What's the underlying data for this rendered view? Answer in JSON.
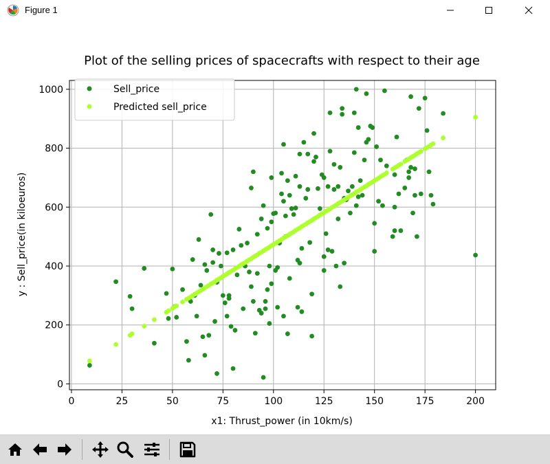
{
  "window": {
    "title": "Figure 1",
    "app_icon": "matplotlib-icon",
    "controls": [
      "minimize-icon",
      "maximize-icon",
      "close-icon"
    ]
  },
  "toolbar": {
    "buttons": [
      "home-icon",
      "back-icon",
      "forward-icon",
      "pan-icon",
      "zoom-icon",
      "configure-subplots-icon",
      "save-icon"
    ]
  },
  "chart_data": {
    "type": "scatter",
    "title": "Plot of the selling prices of spacecrafts with respect to their age",
    "xlabel": "x1: Thrust_power (in 10km/s)",
    "ylabel": "y : Sell_price(in kiloeuros)",
    "xlim": [
      -1,
      210
    ],
    "ylim": [
      -20,
      1030
    ],
    "xticks": [
      0,
      25,
      50,
      75,
      100,
      125,
      150,
      175,
      200
    ],
    "yticks": [
      0,
      200,
      400,
      600,
      800,
      1000
    ],
    "grid": true,
    "legend_position": "upper-left",
    "series": [
      {
        "name": "Sell_price",
        "color": "#228b22",
        "points": [
          [
            9,
            63
          ],
          [
            22,
            347
          ],
          [
            29,
            297
          ],
          [
            30,
            255
          ],
          [
            36,
            392
          ],
          [
            41,
            138
          ],
          [
            47,
            307
          ],
          [
            48,
            222
          ],
          [
            50,
            390
          ],
          [
            51,
            262
          ],
          [
            52,
            226
          ],
          [
            55,
            320
          ],
          [
            57,
            144
          ],
          [
            58,
            80
          ],
          [
            59,
            280
          ],
          [
            60,
            422
          ],
          [
            61,
            300
          ],
          [
            62,
            230
          ],
          [
            63,
            490
          ],
          [
            64,
            335
          ],
          [
            65,
            160
          ],
          [
            66,
            405
          ],
          [
            66,
            97
          ],
          [
            67,
            385
          ],
          [
            68,
            165
          ],
          [
            69,
            575
          ],
          [
            70,
            412
          ],
          [
            70,
            455
          ],
          [
            71,
            212
          ],
          [
            72,
            35
          ],
          [
            72,
            345
          ],
          [
            73,
            443
          ],
          [
            74,
            400
          ],
          [
            75,
            300
          ],
          [
            76,
            275
          ],
          [
            77,
            445
          ],
          [
            77,
            230
          ],
          [
            78,
            300
          ],
          [
            78,
            290
          ],
          [
            79,
            195
          ],
          [
            80,
            455
          ],
          [
            80,
            52
          ],
          [
            81,
            182
          ],
          [
            82,
            370
          ],
          [
            83,
            525
          ],
          [
            84,
            470
          ],
          [
            85,
            255
          ],
          [
            86,
            400
          ],
          [
            87,
            478
          ],
          [
            88,
            380
          ],
          [
            89,
            330
          ],
          [
            89,
            665
          ],
          [
            90,
            720
          ],
          [
            90,
            280
          ],
          [
            91,
            172
          ],
          [
            92,
            508
          ],
          [
            92,
            375
          ],
          [
            93,
            250
          ],
          [
            94,
            560
          ],
          [
            94,
            240
          ],
          [
            95,
            605
          ],
          [
            95,
            22
          ],
          [
            96,
            280
          ],
          [
            96,
            255
          ],
          [
            97,
            528
          ],
          [
            97,
            320
          ],
          [
            98,
            400
          ],
          [
            98,
            205
          ],
          [
            99,
            550
          ],
          [
            99,
            700
          ],
          [
            99,
            340
          ],
          [
            100,
            578
          ],
          [
            101,
            580
          ],
          [
            101,
            385
          ],
          [
            102,
            260
          ],
          [
            102,
            395
          ],
          [
            103,
            478
          ],
          [
            104,
            715
          ],
          [
            104,
            645
          ],
          [
            105,
            813
          ],
          [
            105,
            620
          ],
          [
            105,
            230
          ],
          [
            106,
            570
          ],
          [
            106,
            500
          ],
          [
            107,
            690
          ],
          [
            107,
            170
          ],
          [
            108,
            640
          ],
          [
            108,
            358
          ],
          [
            109,
            595
          ],
          [
            110,
            575
          ],
          [
            111,
            597
          ],
          [
            111,
            705
          ],
          [
            112,
            420
          ],
          [
            112,
            260
          ],
          [
            113,
            780
          ],
          [
            113,
            410
          ],
          [
            113,
            670
          ],
          [
            114,
            460
          ],
          [
            114,
            245
          ],
          [
            115,
            820
          ],
          [
            116,
            630
          ],
          [
            117,
            780
          ],
          [
            117,
            660
          ],
          [
            118,
            480
          ],
          [
            119,
            305
          ],
          [
            119,
            162
          ],
          [
            120,
            755
          ],
          [
            120,
            850
          ],
          [
            121,
            770
          ],
          [
            122,
            663
          ],
          [
            123,
            595
          ],
          [
            124,
            710
          ],
          [
            125,
            432
          ],
          [
            125,
            700
          ],
          [
            125,
            385
          ],
          [
            126,
            510
          ],
          [
            127,
            455
          ],
          [
            127,
            670
          ],
          [
            128,
            790
          ],
          [
            128,
            920
          ],
          [
            129,
            450
          ],
          [
            130,
            660
          ],
          [
            130,
            745
          ],
          [
            131,
            400
          ],
          [
            132,
            670
          ],
          [
            132,
            560
          ],
          [
            133,
            330
          ],
          [
            133,
            735
          ],
          [
            134,
            935
          ],
          [
            134,
            915
          ],
          [
            135,
            630
          ],
          [
            135,
            410
          ],
          [
            136,
            625
          ],
          [
            137,
            655
          ],
          [
            138,
            580
          ],
          [
            139,
            670
          ],
          [
            140,
            920
          ],
          [
            140,
            785
          ],
          [
            141,
            1000
          ],
          [
            141,
            605
          ],
          [
            142,
            635
          ],
          [
            142,
            870
          ],
          [
            143,
            690
          ],
          [
            144,
            640
          ],
          [
            145,
            760
          ],
          [
            146,
            985
          ],
          [
            146,
            820
          ],
          [
            147,
            830
          ],
          [
            148,
            875
          ],
          [
            149,
            870
          ],
          [
            150,
            545
          ],
          [
            150,
            450
          ],
          [
            151,
            805
          ],
          [
            152,
            620
          ],
          [
            153,
            760
          ],
          [
            154,
            605
          ],
          [
            155,
            995
          ],
          [
            156,
            740
          ],
          [
            159,
            500
          ],
          [
            160,
            710
          ],
          [
            160,
            520
          ],
          [
            160,
            600
          ],
          [
            161,
            838
          ],
          [
            162,
            645
          ],
          [
            163,
            520
          ],
          [
            165,
            665
          ],
          [
            166,
            760
          ],
          [
            167,
            700
          ],
          [
            167,
            720
          ],
          [
            168,
            735
          ],
          [
            168,
            975
          ],
          [
            169,
            580
          ],
          [
            170,
            730
          ],
          [
            170,
            640
          ],
          [
            171,
            500
          ],
          [
            172,
            935
          ],
          [
            173,
            645
          ],
          [
            175,
            970
          ],
          [
            176,
            860
          ],
          [
            177,
            720
          ],
          [
            178,
            640
          ],
          [
            179,
            610
          ],
          [
            184,
            918
          ],
          [
            200,
            437
          ]
        ]
      },
      {
        "name": "Predicted sell_price",
        "color": "#adff2f",
        "points": [
          [
            9,
            78
          ],
          [
            22,
            134
          ],
          [
            29,
            165
          ],
          [
            30,
            170
          ],
          [
            36,
            196
          ],
          [
            41,
            218
          ],
          [
            47,
            243
          ],
          [
            48,
            248
          ],
          [
            50,
            256
          ],
          [
            51,
            261
          ],
          [
            52,
            265
          ],
          [
            55,
            278
          ],
          [
            57,
            287
          ],
          [
            58,
            291
          ],
          [
            59,
            295
          ],
          [
            60,
            300
          ],
          [
            61,
            304
          ],
          [
            62,
            308
          ],
          [
            63,
            313
          ],
          [
            64,
            317
          ],
          [
            65,
            321
          ],
          [
            66,
            326
          ],
          [
            67,
            330
          ],
          [
            68,
            334
          ],
          [
            69,
            339
          ],
          [
            70,
            343
          ],
          [
            71,
            347
          ],
          [
            72,
            352
          ],
          [
            73,
            356
          ],
          [
            74,
            360
          ],
          [
            75,
            365
          ],
          [
            76,
            369
          ],
          [
            77,
            373
          ],
          [
            78,
            378
          ],
          [
            79,
            382
          ],
          [
            80,
            386
          ],
          [
            81,
            391
          ],
          [
            82,
            395
          ],
          [
            83,
            399
          ],
          [
            84,
            404
          ],
          [
            85,
            408
          ],
          [
            86,
            412
          ],
          [
            87,
            417
          ],
          [
            88,
            421
          ],
          [
            89,
            425
          ],
          [
            90,
            430
          ],
          [
            91,
            434
          ],
          [
            92,
            438
          ],
          [
            93,
            443
          ],
          [
            94,
            447
          ],
          [
            95,
            451
          ],
          [
            96,
            456
          ],
          [
            97,
            460
          ],
          [
            98,
            464
          ],
          [
            99,
            469
          ],
          [
            100,
            473
          ],
          [
            101,
            477
          ],
          [
            102,
            482
          ],
          [
            103,
            486
          ],
          [
            104,
            490
          ],
          [
            105,
            495
          ],
          [
            106,
            499
          ],
          [
            107,
            503
          ],
          [
            108,
            508
          ],
          [
            109,
            512
          ],
          [
            110,
            516
          ],
          [
            111,
            521
          ],
          [
            112,
            525
          ],
          [
            113,
            529
          ],
          [
            114,
            534
          ],
          [
            115,
            538
          ],
          [
            116,
            542
          ],
          [
            117,
            547
          ],
          [
            118,
            551
          ],
          [
            119,
            555
          ],
          [
            120,
            560
          ],
          [
            121,
            564
          ],
          [
            122,
            568
          ],
          [
            123,
            573
          ],
          [
            124,
            577
          ],
          [
            125,
            581
          ],
          [
            126,
            586
          ],
          [
            127,
            590
          ],
          [
            128,
            594
          ],
          [
            129,
            599
          ],
          [
            130,
            603
          ],
          [
            131,
            607
          ],
          [
            132,
            612
          ],
          [
            133,
            616
          ],
          [
            134,
            620
          ],
          [
            135,
            625
          ],
          [
            136,
            629
          ],
          [
            137,
            633
          ],
          [
            138,
            638
          ],
          [
            139,
            642
          ],
          [
            140,
            646
          ],
          [
            141,
            651
          ],
          [
            142,
            655
          ],
          [
            143,
            659
          ],
          [
            144,
            664
          ],
          [
            145,
            668
          ],
          [
            146,
            672
          ],
          [
            147,
            677
          ],
          [
            148,
            681
          ],
          [
            149,
            685
          ],
          [
            150,
            690
          ],
          [
            151,
            694
          ],
          [
            152,
            698
          ],
          [
            153,
            703
          ],
          [
            154,
            707
          ],
          [
            155,
            711
          ],
          [
            156,
            716
          ],
          [
            159,
            729
          ],
          [
            160,
            733
          ],
          [
            161,
            737
          ],
          [
            162,
            742
          ],
          [
            163,
            746
          ],
          [
            165,
            755
          ],
          [
            166,
            759
          ],
          [
            167,
            763
          ],
          [
            168,
            768
          ],
          [
            169,
            772
          ],
          [
            170,
            776
          ],
          [
            171,
            781
          ],
          [
            172,
            785
          ],
          [
            173,
            789
          ],
          [
            175,
            798
          ],
          [
            176,
            802
          ],
          [
            177,
            806
          ],
          [
            178,
            811
          ],
          [
            179,
            815
          ],
          [
            184,
            835
          ],
          [
            200,
            905
          ]
        ]
      }
    ]
  }
}
